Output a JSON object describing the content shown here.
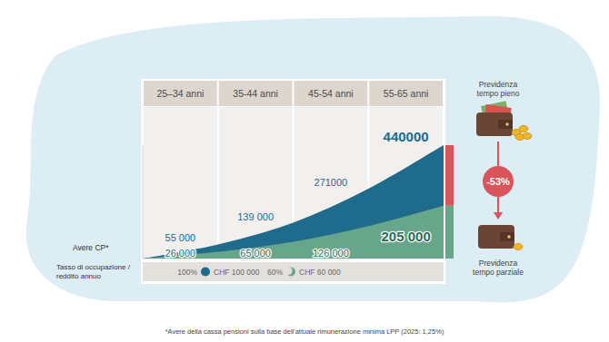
{
  "chart_data": {
    "type": "area",
    "categories": [
      "25–34 anni",
      "35-44 anni",
      "45-54 anni",
      "55-65 anni"
    ],
    "ylabel": "Avere CP*",
    "legend_title": "Tasso di occupazione / reddito annuo",
    "legend": "bottom",
    "series": [
      {
        "name": "100%",
        "income": "CHF 100 000",
        "caption": "Previdenza tempo pieno",
        "color": "#1e6b8b",
        "values": [
          55000,
          139000,
          271000,
          440000
        ],
        "value_labels": [
          "55 000",
          "139 000",
          "271000",
          "440000"
        ]
      },
      {
        "name": "60%",
        "income": "CHF 60 000",
        "caption": "Previdenza tempo parziale",
        "color": "#68a68b",
        "values": [
          26000,
          65000,
          126000,
          205000
        ],
        "value_labels": [
          "26 000",
          "65 000",
          "126 000",
          "205 000"
        ]
      }
    ],
    "annotations": [
      {
        "text": "-53%",
        "color": "#d9545b"
      }
    ],
    "ylim": [
      0,
      440000
    ],
    "tick_labels": false,
    "grid": false,
    "stacked": false,
    "data_labels": true,
    "footnote": "*Avere della cassa pensioni sulla base dell'attuale rimunerazione minima LPP (2025: 1,25%)"
  }
}
